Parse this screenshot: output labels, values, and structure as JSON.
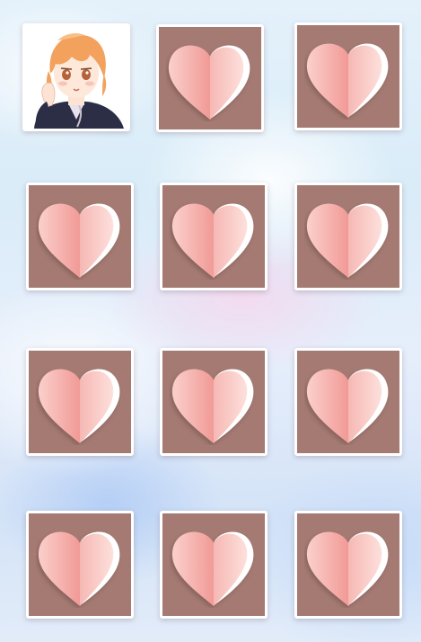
{
  "board": {
    "rows": 4,
    "columns": 3,
    "cards": [
      {
        "state": "face-up",
        "art": "anime-boy-portrait-icon"
      },
      {
        "state": "face-down",
        "art": "heart-icon"
      },
      {
        "state": "face-down",
        "art": "heart-icon"
      },
      {
        "state": "face-down",
        "art": "heart-icon"
      },
      {
        "state": "face-down",
        "art": "heart-icon"
      },
      {
        "state": "face-down",
        "art": "heart-icon"
      },
      {
        "state": "face-down",
        "art": "heart-icon"
      },
      {
        "state": "face-down",
        "art": "heart-icon"
      },
      {
        "state": "face-down",
        "art": "heart-icon"
      },
      {
        "state": "face-down",
        "art": "heart-icon"
      },
      {
        "state": "face-down",
        "art": "heart-icon"
      },
      {
        "state": "face-down",
        "art": "heart-icon"
      }
    ]
  },
  "colors": {
    "card_back": "#a47a73",
    "card_border": "#ffffff",
    "heart_light": "#fcd3cf",
    "heart_mid": "#f7aaa5",
    "heart_dark": "#ef8e8b",
    "hair": "#f2a25d",
    "jacket": "#2b2e45"
  }
}
